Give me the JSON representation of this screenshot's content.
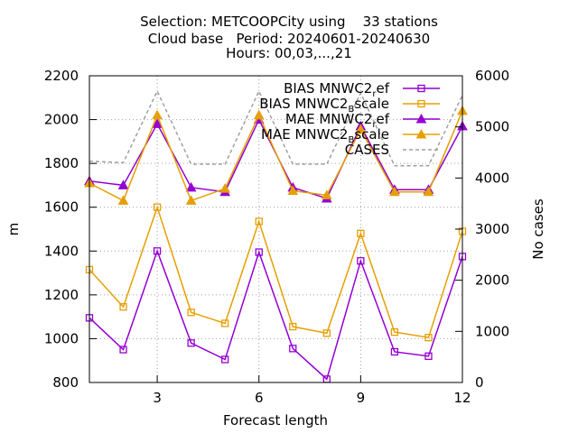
{
  "chart_data": {
    "type": "line",
    "title": {
      "line1": "Selection: METCOOPCity using    33 stations",
      "line2": "Cloud base   Period: 20240601-20240630",
      "line3": "Hours: 00,03,...,21"
    },
    "xlabel": "Forecast length",
    "ylabel": "m",
    "y2label": "No cases",
    "xlim": [
      1,
      12
    ],
    "ylim": [
      800,
      2200
    ],
    "y2lim": [
      0,
      6000
    ],
    "xticks": [
      3,
      6,
      9,
      12
    ],
    "yticks": [
      800,
      1000,
      1200,
      1400,
      1600,
      1800,
      2000,
      2200
    ],
    "y2ticks": [
      0,
      1000,
      2000,
      3000,
      4000,
      5000,
      6000
    ],
    "grid": true,
    "legend_position": "top-right",
    "x": [
      1,
      2,
      3,
      4,
      5,
      6,
      7,
      8,
      9,
      10,
      11,
      12
    ],
    "series": [
      {
        "name": "BIAS MNWC2_ref",
        "legend_parts": [
          "BIAS MNWC2",
          "r",
          "ef"
        ],
        "color": "#9400d3",
        "marker": "square",
        "axis": "y1",
        "values": [
          1095,
          950,
          1400,
          980,
          905,
          1395,
          955,
          815,
          1355,
          940,
          920,
          1375
        ]
      },
      {
        "name": "BIAS MNWC2_Bscale",
        "legend_parts": [
          "BIAS MNWC2",
          "B",
          "scale"
        ],
        "color": "#e69f00",
        "marker": "square",
        "axis": "y1",
        "values": [
          1315,
          1145,
          1600,
          1120,
          1070,
          1535,
          1055,
          1025,
          1480,
          1030,
          1005,
          1490
        ]
      },
      {
        "name": "MAE MNWC2_ref",
        "legend_parts": [
          "MAE MNWC2",
          "r",
          "ef"
        ],
        "color": "#9400d3",
        "marker": "triangle",
        "axis": "y1",
        "values": [
          1720,
          1700,
          1980,
          1690,
          1670,
          2000,
          1690,
          1640,
          1970,
          1680,
          1680,
          1970
        ]
      },
      {
        "name": "MAE MNWC2_Bscale",
        "legend_parts": [
          "MAE MNWC2",
          "B",
          "scale"
        ],
        "color": "#e69f00",
        "marker": "triangle",
        "axis": "y1",
        "values": [
          1710,
          1630,
          2020,
          1630,
          1685,
          2020,
          1675,
          1655,
          1955,
          1670,
          1670,
          2040
        ]
      },
      {
        "name": "CASES",
        "legend_parts": [
          "CASES",
          "",
          ""
        ],
        "color": "#a0a0a0",
        "marker": "none",
        "dashed": true,
        "axis": "y2",
        "values": [
          4330,
          4300,
          5700,
          4270,
          4270,
          5700,
          4270,
          4270,
          5660,
          4240,
          4240,
          5620
        ]
      }
    ]
  }
}
